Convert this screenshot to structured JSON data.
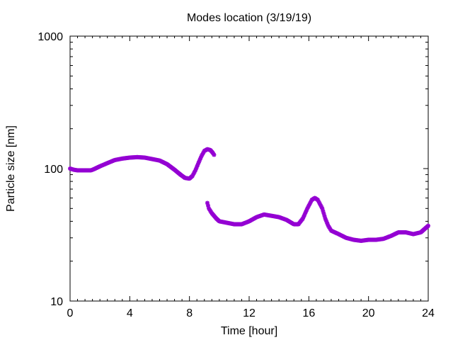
{
  "chart_data": {
    "type": "scatter",
    "title": "Modes location (3/19/19)",
    "xlabel": "Time [hour]",
    "ylabel": "Particle size [nm]",
    "xlim": [
      0,
      24
    ],
    "ylim": [
      10,
      1000
    ],
    "yscale": "log",
    "xticks": [
      0,
      4,
      8,
      12,
      16,
      20,
      24
    ],
    "xtick_labels": [
      "0",
      "4",
      "8",
      "12",
      "16",
      "20",
      "24"
    ],
    "yticks": [
      10,
      100,
      1000
    ],
    "ytick_labels": [
      "10",
      "100",
      "1000"
    ],
    "grid": false,
    "legend": "none",
    "marker_color": "#9400d3",
    "series": [
      {
        "values_xy": [
          [
            0.0,
            100
          ],
          [
            0.25,
            98
          ],
          [
            0.5,
            97
          ],
          [
            1.0,
            97
          ],
          [
            1.4,
            97
          ],
          [
            1.6,
            99
          ],
          [
            2.0,
            104
          ],
          [
            2.5,
            110
          ],
          [
            3.0,
            116
          ],
          [
            3.5,
            119
          ],
          [
            4.0,
            121
          ],
          [
            4.5,
            122
          ],
          [
            5.0,
            121
          ],
          [
            5.5,
            118
          ],
          [
            6.0,
            115
          ],
          [
            6.5,
            108
          ],
          [
            7.0,
            98
          ],
          [
            7.4,
            90
          ],
          [
            7.7,
            85
          ],
          [
            8.0,
            84
          ],
          [
            8.2,
            88
          ],
          [
            8.4,
            97
          ],
          [
            8.6,
            110
          ],
          [
            8.8,
            124
          ],
          [
            9.0,
            136
          ],
          [
            9.2,
            140
          ],
          [
            9.4,
            138
          ],
          [
            9.55,
            132
          ],
          [
            9.65,
            127
          ]
        ]
      },
      {
        "values_xy": [
          [
            9.2,
            55
          ],
          [
            9.3,
            50
          ],
          [
            9.5,
            46
          ],
          [
            9.8,
            42
          ],
          [
            10.0,
            40
          ],
          [
            10.5,
            39
          ],
          [
            11.0,
            38
          ],
          [
            11.5,
            38
          ],
          [
            12.0,
            40
          ],
          [
            12.5,
            43
          ],
          [
            13.0,
            45
          ],
          [
            13.5,
            44
          ],
          [
            14.0,
            43
          ],
          [
            14.5,
            41
          ],
          [
            15.0,
            38
          ],
          [
            15.3,
            38
          ],
          [
            15.6,
            42
          ],
          [
            15.9,
            50
          ],
          [
            16.2,
            58
          ],
          [
            16.4,
            60
          ],
          [
            16.6,
            58
          ],
          [
            16.9,
            50
          ],
          [
            17.1,
            42
          ],
          [
            17.3,
            37
          ],
          [
            17.5,
            34
          ],
          [
            18.0,
            32
          ],
          [
            18.5,
            30
          ],
          [
            19.0,
            29
          ],
          [
            19.5,
            28.5
          ],
          [
            20.0,
            29
          ],
          [
            20.5,
            29
          ],
          [
            21.0,
            29.5
          ],
          [
            21.5,
            31
          ],
          [
            22.0,
            33
          ],
          [
            22.5,
            33
          ],
          [
            23.0,
            32
          ],
          [
            23.5,
            33
          ],
          [
            24.0,
            37
          ]
        ]
      }
    ]
  }
}
